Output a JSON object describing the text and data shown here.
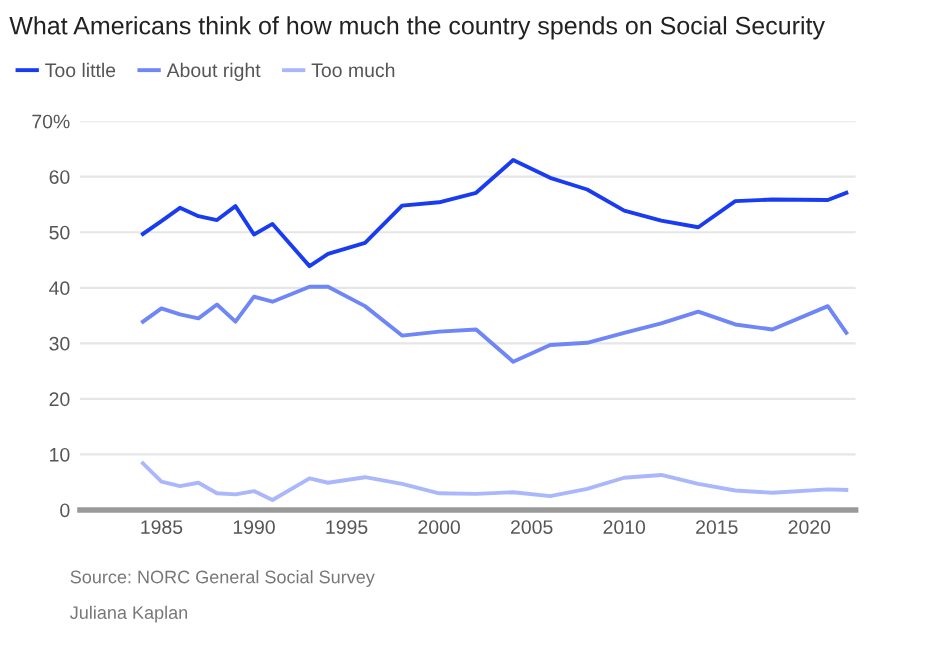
{
  "chart_data": {
    "type": "line",
    "title": "What Americans think of how much the country spends on Social Security",
    "x": [
      1984,
      1985,
      1986,
      1987,
      1988,
      1989,
      1990,
      1991,
      1993,
      1994,
      1996,
      1998,
      2000,
      2002,
      2004,
      2006,
      2008,
      2010,
      2012,
      2014,
      2016,
      2018,
      2021,
      2022
    ],
    "series": [
      {
        "name": "Too little",
        "color": "#1a3cf0",
        "values": [
          49.7,
          52,
          54.4,
          52.9,
          52.2,
          54.7,
          49.6,
          51.5,
          43.9,
          46.1,
          48.1,
          54.8,
          55.4,
          57.1,
          63.0,
          59.8,
          57.7,
          53.9,
          52.1,
          50.9,
          55.6,
          55.9,
          55.8,
          57.1
        ]
      },
      {
        "name": "About right",
        "color": "#6f86f7",
        "values": [
          33.9,
          36.3,
          35.2,
          34.5,
          37.0,
          33.9,
          38.4,
          37.5,
          40.2,
          40.2,
          36.7,
          31.4,
          32.1,
          32.5,
          26.7,
          29.7,
          30.1,
          31.9,
          33.6,
          35.7,
          33.4,
          32.5,
          36.7,
          31.9
        ]
      },
      {
        "name": "Too much",
        "color": "#aab8fb",
        "values": [
          8.4,
          5.1,
          4.3,
          4.9,
          3.0,
          2.8,
          3.4,
          1.8,
          5.7,
          4.9,
          5.9,
          4.7,
          3.0,
          2.9,
          3.2,
          2.5,
          3.8,
          5.8,
          6.3,
          4.7,
          3.5,
          3.1,
          3.7,
          3.6
        ]
      }
    ],
    "xlim": [
      1980.6,
      2022.5
    ],
    "xticks": [
      1985,
      1990,
      1995,
      2000,
      2005,
      2010,
      2015,
      2020
    ],
    "ylim": [
      0,
      70
    ],
    "yticks": [
      0,
      10,
      20,
      30,
      40,
      50,
      60,
      {
        "value": 70,
        "label": "70%"
      }
    ],
    "grid": "y",
    "legend": "top left",
    "marker": "none",
    "line_style": "solid",
    "annotations": [
      "Source: NORC General Social Survey",
      "Juliana Kaplan"
    ]
  }
}
